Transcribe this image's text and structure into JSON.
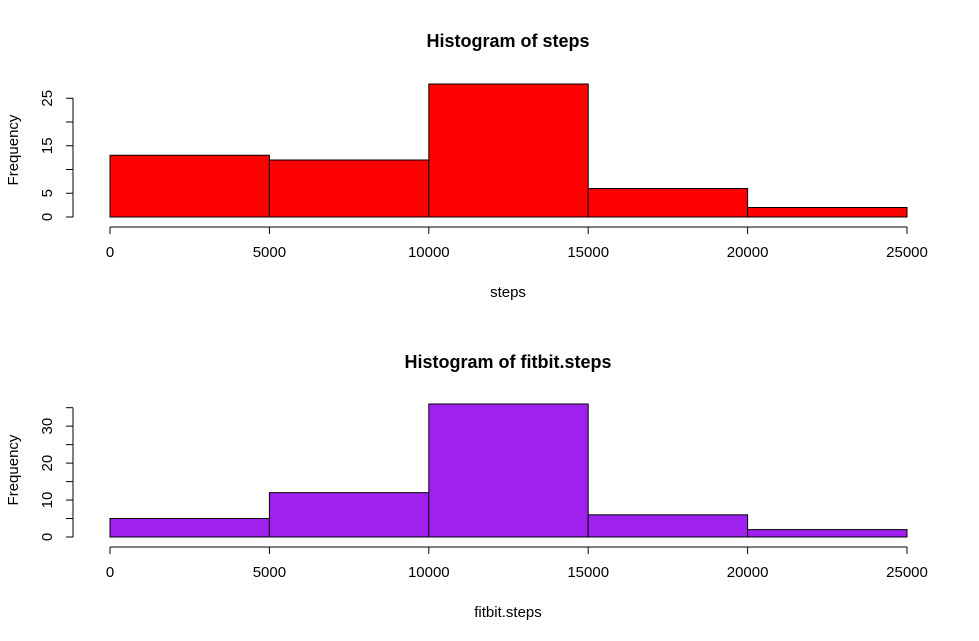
{
  "chart_data": [
    {
      "type": "histogram",
      "title": "Histogram of steps",
      "xlabel": "steps",
      "ylabel": "Frequency",
      "bin_edges": [
        0,
        5000,
        10000,
        15000,
        20000,
        25000
      ],
      "values": [
        13,
        12,
        28,
        6,
        2
      ],
      "bar_color": "#ff0000",
      "xlim": [
        0,
        25000
      ],
      "ylim": [
        0,
        28
      ],
      "x_ticks": [
        0,
        5000,
        10000,
        15000,
        20000,
        25000
      ],
      "y_ticks": [
        0,
        5,
        10,
        15,
        20,
        25
      ],
      "y_tick_labels": [
        "0",
        "5",
        "",
        "15",
        "",
        "25"
      ],
      "grid": false
    },
    {
      "type": "histogram",
      "title": "Histogram of fitbit.steps",
      "xlabel": "fitbit.steps",
      "ylabel": "Frequency",
      "bin_edges": [
        0,
        5000,
        10000,
        15000,
        20000,
        25000
      ],
      "values": [
        5,
        12,
        36,
        6,
        2
      ],
      "bar_color": "#a020f0",
      "xlim": [
        0,
        25000
      ],
      "ylim": [
        0,
        36
      ],
      "x_ticks": [
        0,
        5000,
        10000,
        15000,
        20000,
        25000
      ],
      "y_ticks": [
        0,
        5,
        10,
        15,
        20,
        25,
        30,
        35
      ],
      "y_tick_labels": [
        "0",
        "",
        "10",
        "",
        "20",
        "",
        "30",
        ""
      ],
      "grid": false
    }
  ]
}
